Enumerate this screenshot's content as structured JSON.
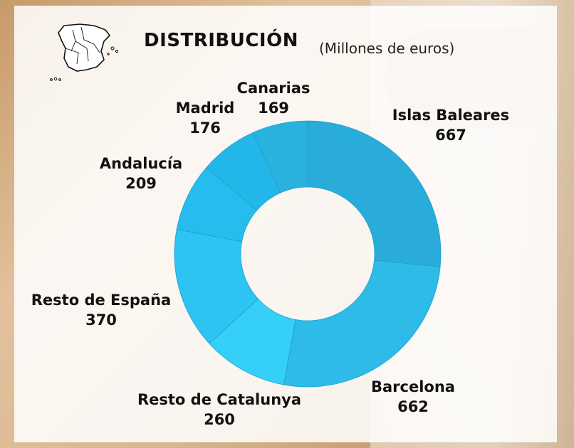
{
  "header": {
    "title": "DISTRIBUCIÓN",
    "subtitle": "(Millones de euros)"
  },
  "chart_data": {
    "type": "pie",
    "donut": true,
    "categories": [
      "Islas Baleares",
      "Barcelona",
      "Resto de Catalunya",
      "Resto de España",
      "Andalucía",
      "Madrid",
      "Canarias"
    ],
    "values": [
      667,
      662,
      260,
      370,
      209,
      176,
      169
    ],
    "value_labels": [
      "667",
      "662",
      "260",
      "370",
      "209",
      "176",
      "169"
    ],
    "colors": [
      "#29acd9",
      "#2ebbe8",
      "#36cff7",
      "#2dc3f2",
      "#27bcee",
      "#23b6e9",
      "#2ab2df"
    ],
    "legend": "none"
  }
}
